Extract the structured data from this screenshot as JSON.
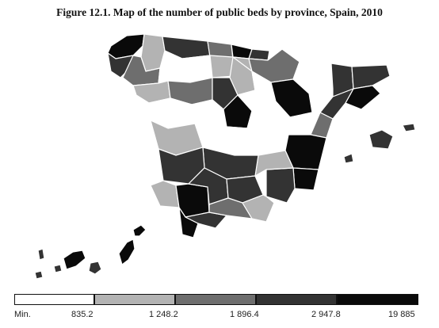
{
  "title": "Figure 12.1. Map of the number of public beds by province, Spain, 2010",
  "legend": {
    "classes": [
      {
        "color": "#ffffff"
      },
      {
        "color": "#b3b3b3"
      },
      {
        "color": "#6e6e6e"
      },
      {
        "color": "#333333"
      },
      {
        "color": "#0a0a0a"
      }
    ],
    "labels": [
      "Min.",
      "835.2",
      "1 248.2",
      "1 896.4",
      "2 947.8",
      "19 885"
    ]
  }
}
